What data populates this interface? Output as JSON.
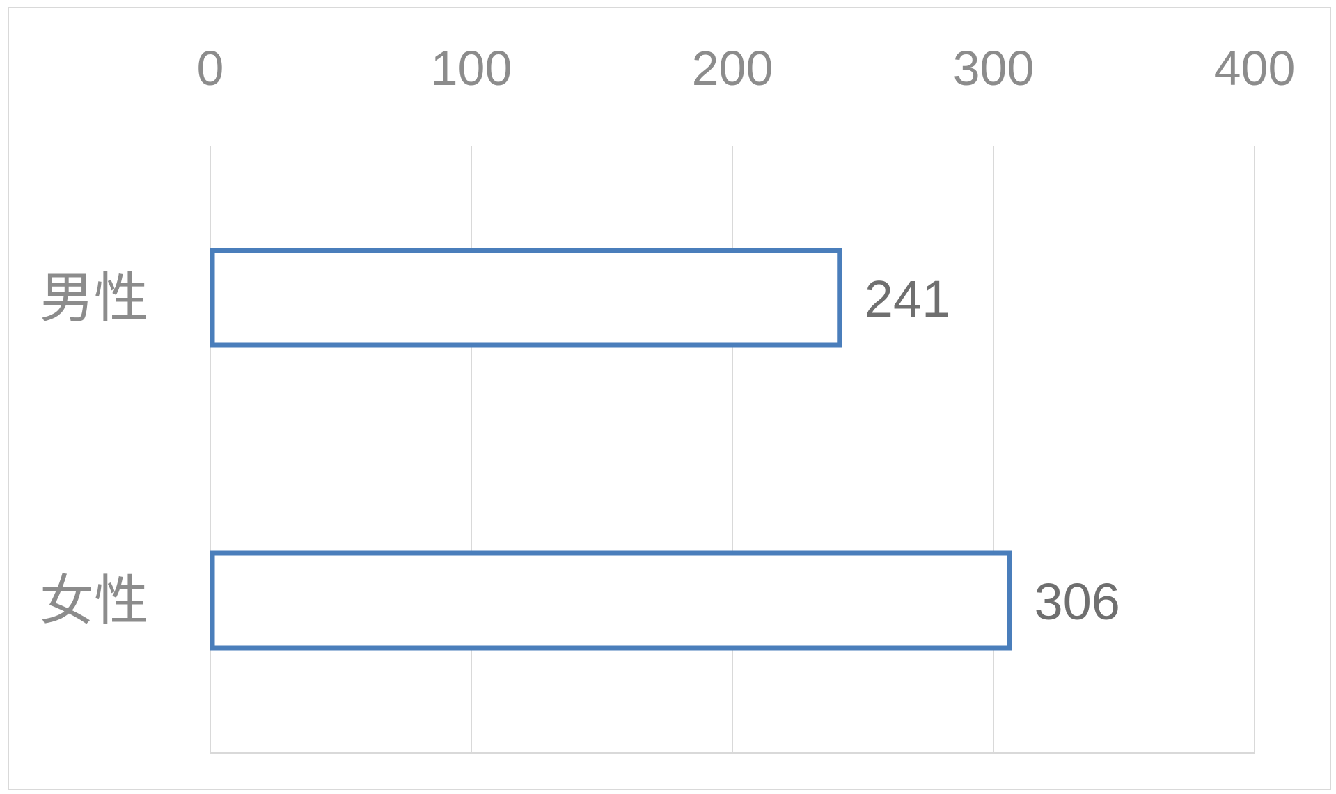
{
  "chart_data": {
    "type": "bar",
    "orientation": "horizontal",
    "categories": [
      "男性",
      "女性"
    ],
    "values": [
      241,
      306
    ],
    "data_labels": [
      "241",
      "306"
    ],
    "title": "",
    "xlabel": "",
    "ylabel": "",
    "xlim": [
      0,
      400
    ],
    "x_ticks": [
      0,
      100,
      200,
      300,
      400
    ],
    "x_tick_labels": [
      "0",
      "100",
      "200",
      "300",
      "400"
    ],
    "x_axis_position": "top",
    "grid": true,
    "legend": "none",
    "bar_style": "outline",
    "colors": {
      "bar_outline": "#4a7ebb",
      "bar_fill": "#ffffff",
      "grid": "#d9d9d9",
      "tick_text": "#8c8c8c",
      "data_label_text": "#6f6f6f"
    }
  }
}
